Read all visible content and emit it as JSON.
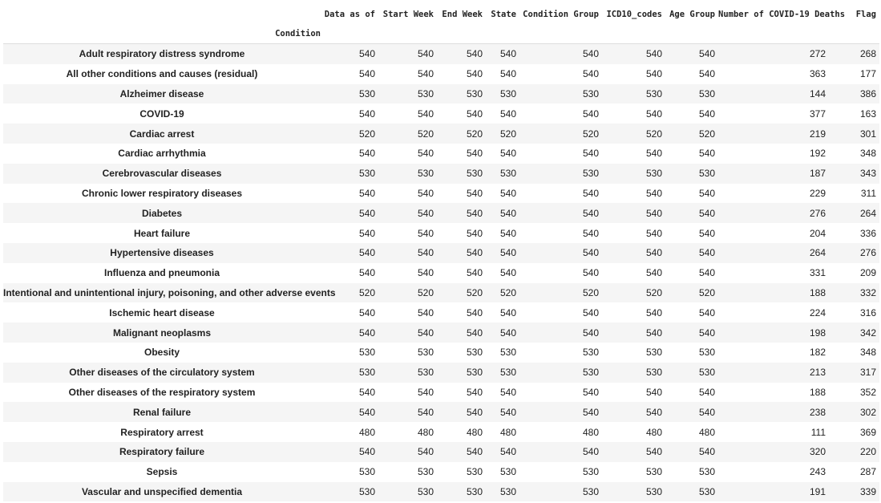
{
  "columns": [
    "Data as of",
    "Start Week",
    "End Week",
    "State",
    "Condition Group",
    "ICD10_codes",
    "Age Group",
    "Number of COVID-19 Deaths",
    "Flag"
  ],
  "index_name": "Condition",
  "rows": [
    {
      "condition": "Adult respiratory distress syndrome",
      "values": [
        540,
        540,
        540,
        540,
        540,
        540,
        540,
        272,
        268
      ]
    },
    {
      "condition": "All other conditions and causes (residual)",
      "values": [
        540,
        540,
        540,
        540,
        540,
        540,
        540,
        363,
        177
      ]
    },
    {
      "condition": "Alzheimer disease",
      "values": [
        530,
        530,
        530,
        530,
        530,
        530,
        530,
        144,
        386
      ]
    },
    {
      "condition": "COVID-19",
      "values": [
        540,
        540,
        540,
        540,
        540,
        540,
        540,
        377,
        163
      ]
    },
    {
      "condition": "Cardiac arrest",
      "values": [
        520,
        520,
        520,
        520,
        520,
        520,
        520,
        219,
        301
      ]
    },
    {
      "condition": "Cardiac arrhythmia",
      "values": [
        540,
        540,
        540,
        540,
        540,
        540,
        540,
        192,
        348
      ]
    },
    {
      "condition": "Cerebrovascular diseases",
      "values": [
        530,
        530,
        530,
        530,
        530,
        530,
        530,
        187,
        343
      ]
    },
    {
      "condition": "Chronic lower respiratory diseases",
      "values": [
        540,
        540,
        540,
        540,
        540,
        540,
        540,
        229,
        311
      ]
    },
    {
      "condition": "Diabetes",
      "values": [
        540,
        540,
        540,
        540,
        540,
        540,
        540,
        276,
        264
      ]
    },
    {
      "condition": "Heart failure",
      "values": [
        540,
        540,
        540,
        540,
        540,
        540,
        540,
        204,
        336
      ]
    },
    {
      "condition": "Hypertensive diseases",
      "values": [
        540,
        540,
        540,
        540,
        540,
        540,
        540,
        264,
        276
      ]
    },
    {
      "condition": "Influenza and pneumonia",
      "values": [
        540,
        540,
        540,
        540,
        540,
        540,
        540,
        331,
        209
      ]
    },
    {
      "condition": "Intentional and unintentional injury, poisoning, and other adverse events",
      "values": [
        520,
        520,
        520,
        520,
        520,
        520,
        520,
        188,
        332
      ]
    },
    {
      "condition": "Ischemic heart disease",
      "values": [
        540,
        540,
        540,
        540,
        540,
        540,
        540,
        224,
        316
      ]
    },
    {
      "condition": "Malignant neoplasms",
      "values": [
        540,
        540,
        540,
        540,
        540,
        540,
        540,
        198,
        342
      ]
    },
    {
      "condition": "Obesity",
      "values": [
        530,
        530,
        530,
        530,
        530,
        530,
        530,
        182,
        348
      ]
    },
    {
      "condition": "Other diseases of the circulatory system",
      "values": [
        530,
        530,
        530,
        530,
        530,
        530,
        530,
        213,
        317
      ]
    },
    {
      "condition": "Other diseases of the respiratory system",
      "values": [
        540,
        540,
        540,
        540,
        540,
        540,
        540,
        188,
        352
      ]
    },
    {
      "condition": "Renal failure",
      "values": [
        540,
        540,
        540,
        540,
        540,
        540,
        540,
        238,
        302
      ]
    },
    {
      "condition": "Respiratory arrest",
      "values": [
        480,
        480,
        480,
        480,
        480,
        480,
        480,
        111,
        369
      ]
    },
    {
      "condition": "Respiratory failure",
      "values": [
        540,
        540,
        540,
        540,
        540,
        540,
        540,
        320,
        220
      ]
    },
    {
      "condition": "Sepsis",
      "values": [
        530,
        530,
        530,
        530,
        530,
        530,
        530,
        243,
        287
      ]
    },
    {
      "condition": "Vascular and unspecified dementia",
      "values": [
        530,
        530,
        530,
        530,
        530,
        530,
        530,
        191,
        339
      ]
    }
  ]
}
